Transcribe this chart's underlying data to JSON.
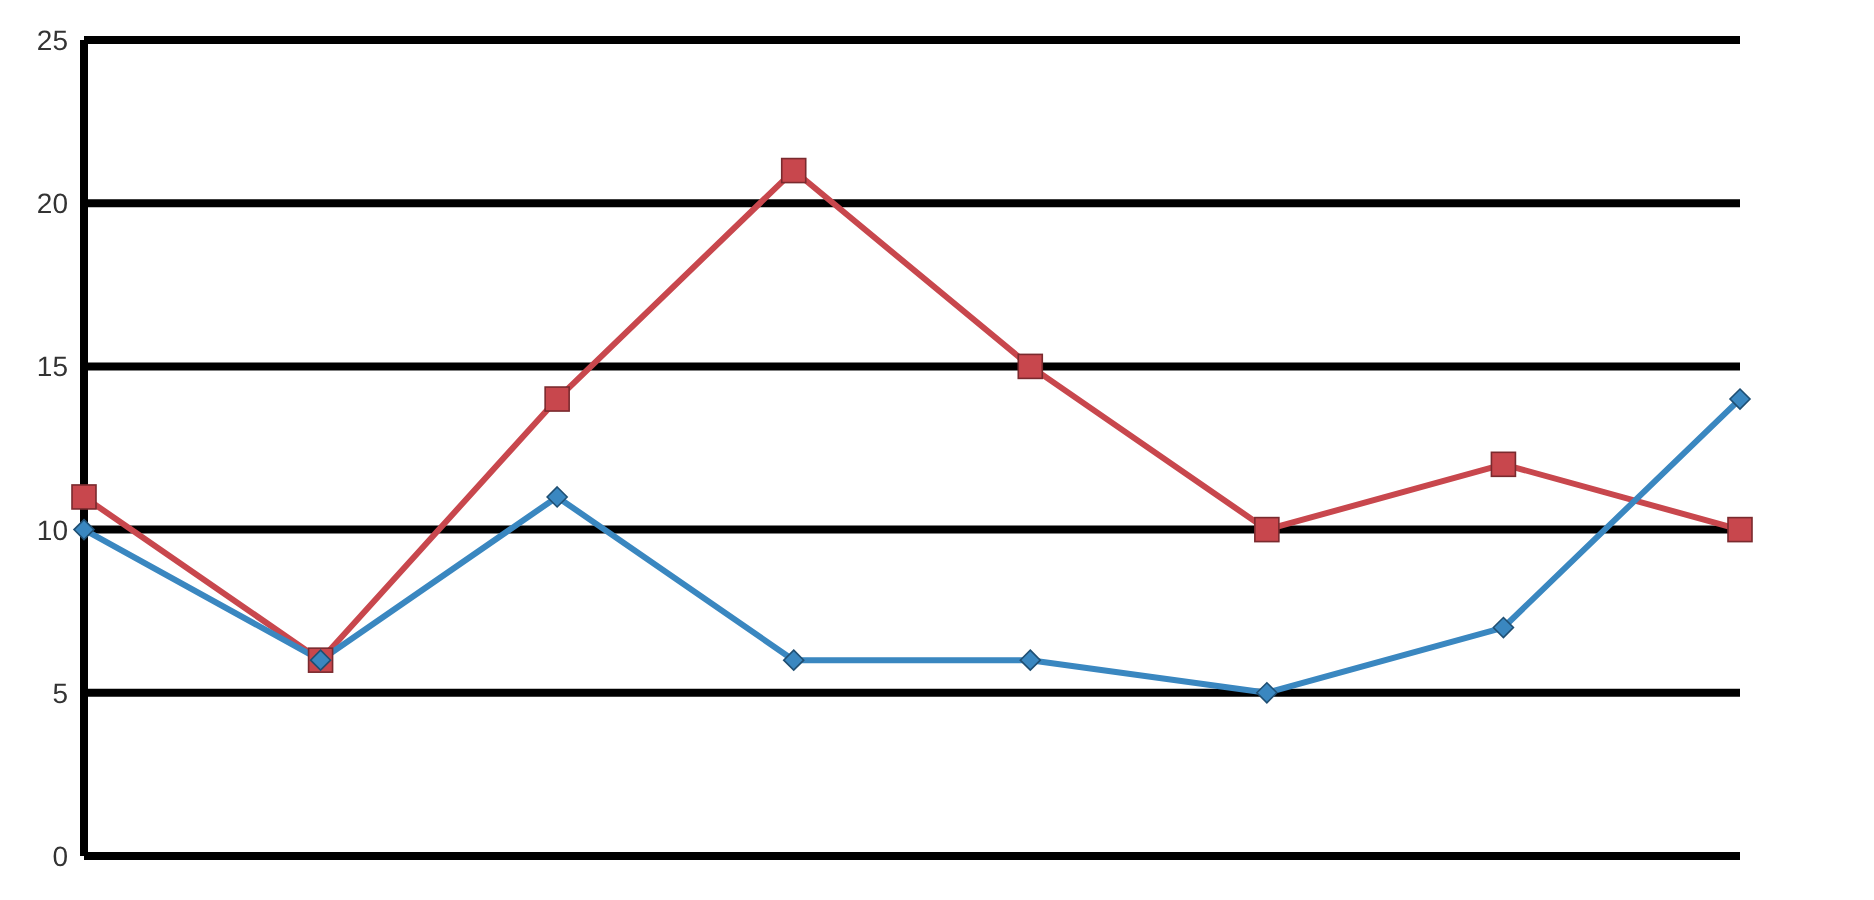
{
  "chart_data": {
    "type": "line",
    "categories": [
      null,
      null,
      null,
      null,
      null,
      null,
      null,
      null
    ],
    "series": [
      {
        "color": "#c8474d",
        "marker": "square",
        "values": [
          11,
          6,
          14,
          21,
          15,
          10,
          12,
          10
        ]
      },
      {
        "color": "#3a87c0",
        "marker": "diamond",
        "values": [
          10,
          6,
          11,
          6,
          6,
          5,
          7,
          14
        ]
      }
    ],
    "ylim": [
      0,
      25
    ],
    "yticks": [
      0,
      5,
      10,
      15,
      20,
      25
    ],
    "grid": "y",
    "tick_labels": "y",
    "line_style": "solid"
  }
}
